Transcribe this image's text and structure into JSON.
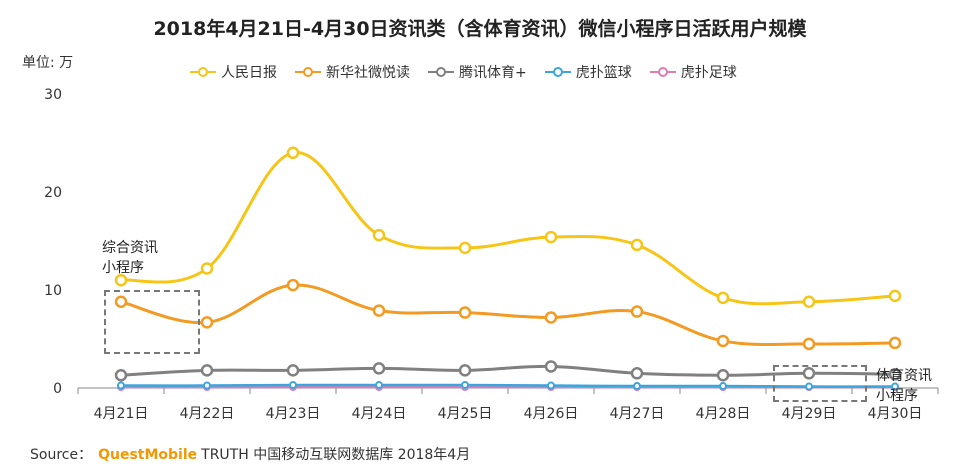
{
  "source": {
    "label": "Source：",
    "brand": "QuestMobile",
    "rest": "TRUTH 中国移动互联网数据库 2018年4月"
  },
  "annotations": {
    "left": [
      "综合资讯",
      "小程序"
    ],
    "right": [
      "体育资讯",
      "小程序"
    ]
  },
  "colors": {
    "axis": "#888888",
    "text": "#333333",
    "box": "#777777"
  },
  "chart_data": {
    "type": "line",
    "title": "2018年4月21日-4月30日资讯类（含体育资讯）微信小程序日活跃用户规模",
    "ylabel": "单位: 万",
    "xlabel": "",
    "ylim": [
      0,
      30
    ],
    "yticks": [
      0,
      10,
      20,
      30
    ],
    "grid": false,
    "legend_position": "top",
    "categories": [
      "4月21日",
      "4月22日",
      "4月23日",
      "4月24日",
      "4月25日",
      "4月26日",
      "4月27日",
      "4月28日",
      "4月29日",
      "4月30日"
    ],
    "series": [
      {
        "name": "人民日报",
        "color": "#f5c518",
        "values": [
          11.0,
          12.2,
          24.0,
          15.6,
          14.3,
          15.4,
          14.6,
          9.2,
          8.8,
          9.4
        ]
      },
      {
        "name": "新华社微悦读",
        "color": "#f39a22",
        "values": [
          8.8,
          6.7,
          10.5,
          7.9,
          7.7,
          7.2,
          7.8,
          4.8,
          4.5,
          4.6
        ]
      },
      {
        "name": "腾讯体育+",
        "color": "#808080",
        "values": [
          1.3,
          1.8,
          1.8,
          2.0,
          1.8,
          2.2,
          1.5,
          1.3,
          1.5,
          1.4
        ]
      },
      {
        "name": "虎扑篮球",
        "color": "#3aa6dd",
        "values": [
          0.25,
          0.25,
          0.3,
          0.3,
          0.3,
          0.25,
          0.2,
          0.2,
          0.15,
          0.15
        ]
      },
      {
        "name": "虎扑足球",
        "color": "#e07bb4",
        "values": [
          0.1,
          0.1,
          0.1,
          0.1,
          0.1,
          0.1,
          0.1,
          0.1,
          0.1,
          0.1
        ]
      }
    ]
  }
}
